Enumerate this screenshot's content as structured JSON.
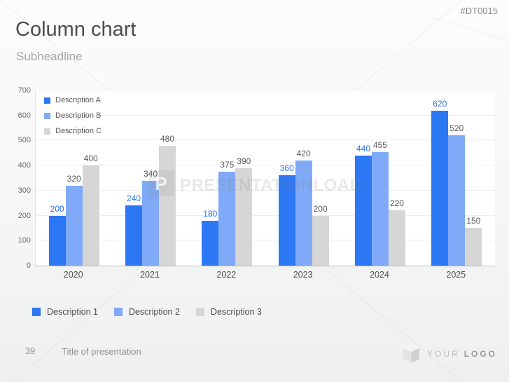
{
  "slide": {
    "code": "#DT0015",
    "title": "Column chart",
    "subtitle": "Subheadline",
    "watermark_text": "PRESENTATIONLOAD",
    "footer": {
      "page_number": "39",
      "presentation_title": "Title of presentation",
      "logo_word_light": "YOUR",
      "logo_word_bold": "LOGO"
    }
  },
  "chart_data": {
    "type": "bar",
    "title": "",
    "xlabel": "",
    "ylabel": "",
    "categories": [
      "2020",
      "2021",
      "2022",
      "2023",
      "2024",
      "2025"
    ],
    "series": [
      {
        "name": "Description A",
        "color": "#2C78F4",
        "label_color": "#2C78F4",
        "values": [
          200,
          240,
          180,
          360,
          440,
          620
        ]
      },
      {
        "name": "Description B",
        "color": "#80AAF8",
        "label_color": "#595959",
        "values": [
          320,
          340,
          375,
          420,
          455,
          520
        ]
      },
      {
        "name": "Description C",
        "color": "#D6D6D6",
        "label_color": "#595959",
        "values": [
          400,
          480,
          390,
          200,
          220,
          150
        ]
      }
    ],
    "ylim": [
      0,
      700
    ],
    "yticks": [
      0,
      100,
      200,
      300,
      400,
      500,
      600,
      700
    ],
    "grid": true,
    "legend_position": "top-left-inside",
    "data_labels": true
  },
  "bottom_legend": [
    {
      "label": "Description 1",
      "color": "#2C78F4"
    },
    {
      "label": "Description 2",
      "color": "#80AAF8"
    },
    {
      "label": "Description 3",
      "color": "#D6D6D6"
    }
  ],
  "colors": {
    "axis_line": "#bdbdbd",
    "gridline": "#ededed",
    "tick_text": "#6b6b6b",
    "title_text": "#4d4d4d",
    "subtitle_text": "#a6a6a6"
  }
}
